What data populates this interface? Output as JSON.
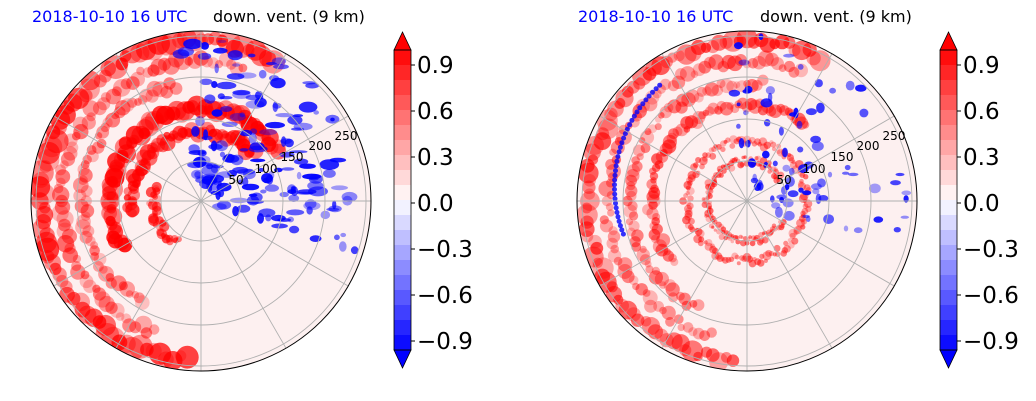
{
  "colors": {
    "positive": "#ff0000",
    "negative": "#0000ff",
    "neutral": "#ffffff",
    "grid": "#b0b0b0"
  },
  "chart_data": [
    {
      "type": "heatmap",
      "projection": "polar",
      "title_left": "2018-10-10 16 UTC",
      "title_right": "down. vent. (9 km)",
      "radial_ticks": [
        "50",
        "100",
        "150",
        "200",
        "250"
      ],
      "colorbar": {
        "ticks": [
          "0.9",
          "0.6",
          "0.3",
          "0.0",
          "−0.3",
          "−0.6",
          "−0.9"
        ],
        "range": [
          -1,
          1
        ],
        "extend": "both",
        "levels": 20
      },
      "grid": true
    },
    {
      "type": "heatmap",
      "projection": "polar",
      "title_left": "2018-10-10 16 UTC",
      "title_right": "down. vent. (9 km)",
      "radial_ticks": [
        "50",
        "100",
        "150",
        "200",
        "250"
      ],
      "colorbar": {
        "ticks": [
          "0.9",
          "0.6",
          "0.3",
          "0.0",
          "−0.3",
          "−0.6",
          "−0.9"
        ],
        "range": [
          -1,
          1
        ],
        "extend": "both",
        "levels": 20
      },
      "grid": true
    }
  ]
}
